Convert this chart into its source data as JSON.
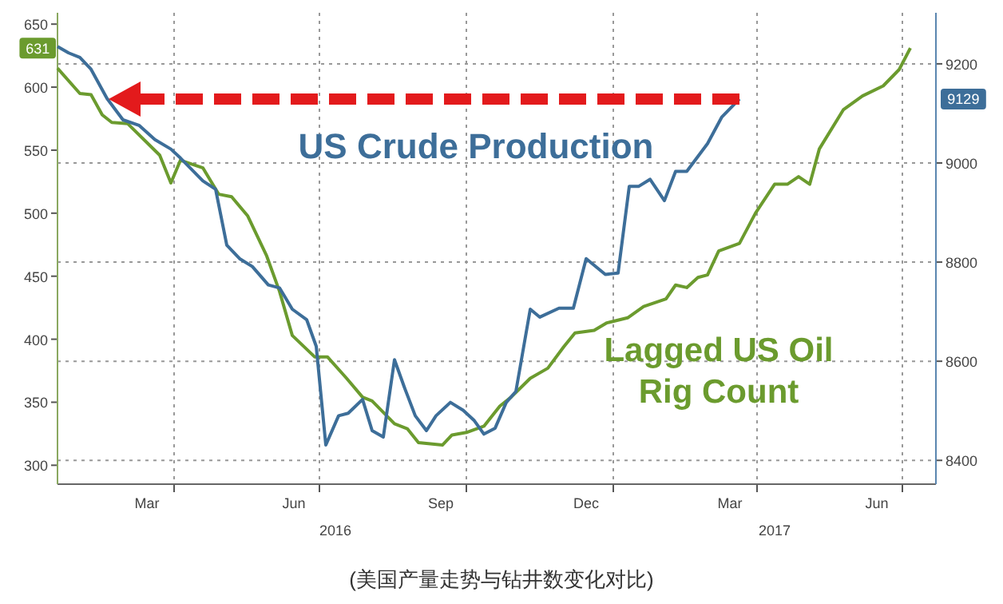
{
  "chart_data": {
    "type": "line",
    "annotations": [
      "(美国产量走势与钻井数变化对比)",
      "2016",
      "2017"
    ],
    "xlim": [
      "2016-01-19",
      "2017-07-22"
    ],
    "xticks": [
      {
        "value": "2016-03-15",
        "label": "Mar"
      },
      {
        "value": "2016-06-15",
        "label": "Jun"
      },
      {
        "value": "2016-09-15",
        "label": "Sep"
      },
      {
        "value": "2016-12-15",
        "label": "Dec"
      },
      {
        "value": "2017-03-15",
        "label": "Mar"
      },
      {
        "value": "2017-06-15",
        "label": "Jun"
      },
      {
        "value": "2016-04-01",
        "label": null
      },
      {
        "value": "2016-07-01",
        "label": null
      },
      {
        "value": "2016-10-01",
        "label": null
      },
      {
        "value": "2017-01-01",
        "label": null
      },
      {
        "value": "2017-04-01",
        "label": null
      },
      {
        "value": "2017-07-01",
        "label": null
      }
    ],
    "ylim": [
      285,
      659
    ],
    "yticks": [
      300,
      350,
      400,
      450,
      500,
      550,
      600,
      650,
      {
        "value": 631,
        "label": "631"
      }
    ],
    "y2lim": [
      8352,
      9303
    ],
    "y2ticks": [
      8400,
      8600,
      8800,
      9000,
      9200,
      {
        "value": 9129,
        "label": "9129"
      }
    ],
    "grid": true,
    "series": [
      {
        "name": "Lagged US Oil Rig Count",
        "color": "#6b9b2e",
        "axis": "y",
        "x": [
          "2016-01-19",
          "2016-02-02",
          "2016-02-09",
          "2016-02-16",
          "2016-02-22",
          "2016-03-03",
          "2016-03-23",
          "2016-03-30",
          "2016-04-05",
          "2016-04-19",
          "2016-04-29",
          "2016-05-07",
          "2016-05-17",
          "2016-05-29",
          "2016-06-06",
          "2016-06-14",
          "2016-06-28",
          "2016-07-06",
          "2016-07-18",
          "2016-07-28",
          "2016-08-03",
          "2016-08-17",
          "2016-08-25",
          "2016-09-01",
          "2016-09-16",
          "2016-09-22",
          "2016-10-01",
          "2016-10-12",
          "2016-10-22",
          "2016-10-29",
          "2016-11-10",
          "2016-11-21",
          "2016-12-01",
          "2016-12-08",
          "2016-12-20",
          "2016-12-28",
          "2017-01-10",
          "2017-01-20",
          "2017-02-03",
          "2017-02-09",
          "2017-02-16",
          "2017-02-23",
          "2017-03-01",
          "2017-03-08",
          "2017-03-21",
          "2017-03-31",
          "2017-04-12",
          "2017-04-20",
          "2017-04-27",
          "2017-05-04",
          "2017-05-10",
          "2017-05-25",
          "2017-06-06",
          "2017-06-19",
          "2017-06-29",
          "2017-07-06"
        ],
        "values": [
          615,
          595,
          594,
          578,
          572,
          571,
          546,
          524,
          542,
          536,
          515,
          513,
          498,
          466,
          438,
          403,
          386,
          386,
          369,
          354,
          351,
          333,
          329,
          318,
          316,
          324,
          326,
          331,
          347,
          354,
          369,
          377,
          394,
          405,
          407,
          413,
          417,
          426,
          432,
          443,
          441,
          449,
          451,
          470,
          476,
          500,
          523,
          523,
          529,
          523,
          551,
          582,
          593,
          601,
          614,
          631
        ]
      },
      {
        "name": "US Crude Production",
        "color": "#3d6e99",
        "axis": "y2",
        "x": [
          "2016-01-19",
          "2016-01-26",
          "2016-02-02",
          "2016-02-09",
          "2016-02-19",
          "2016-02-29",
          "2016-03-10",
          "2016-03-20",
          "2016-03-30",
          "2016-04-05",
          "2016-04-19",
          "2016-04-27",
          "2016-05-04",
          "2016-05-12",
          "2016-05-20",
          "2016-05-30",
          "2016-06-06",
          "2016-06-14",
          "2016-06-23",
          "2016-06-29",
          "2016-07-05",
          "2016-07-13",
          "2016-07-19",
          "2016-07-28",
          "2016-08-03",
          "2016-08-10",
          "2016-08-17",
          "2016-08-23",
          "2016-08-30",
          "2016-09-06",
          "2016-09-12",
          "2016-09-21",
          "2016-09-29",
          "2016-10-06",
          "2016-10-12",
          "2016-10-19",
          "2016-10-26",
          "2016-11-01",
          "2016-11-10",
          "2016-11-16",
          "2016-11-28",
          "2016-12-07",
          "2016-12-15",
          "2016-12-27",
          "2017-01-04",
          "2017-01-11",
          "2017-01-17",
          "2017-01-24",
          "2017-02-02",
          "2017-02-09",
          "2017-02-16",
          "2017-03-01",
          "2017-03-10",
          "2017-03-21"
        ],
        "values": [
          9235,
          9222,
          9213,
          9189,
          9130,
          9087,
          9076,
          9047,
          9028,
          9010,
          8964,
          8947,
          8834,
          8807,
          8791,
          8754,
          8748,
          8705,
          8684,
          8630,
          8431,
          8490,
          8495,
          8523,
          8460,
          8447,
          8603,
          8549,
          8490,
          8460,
          8490,
          8517,
          8501,
          8480,
          8453,
          8465,
          8517,
          8539,
          8705,
          8689,
          8707,
          8707,
          8807,
          8775,
          8778,
          8953,
          8953,
          8967,
          8924,
          8983,
          8983,
          9039,
          9093,
          9129
        ]
      }
    ]
  }
}
